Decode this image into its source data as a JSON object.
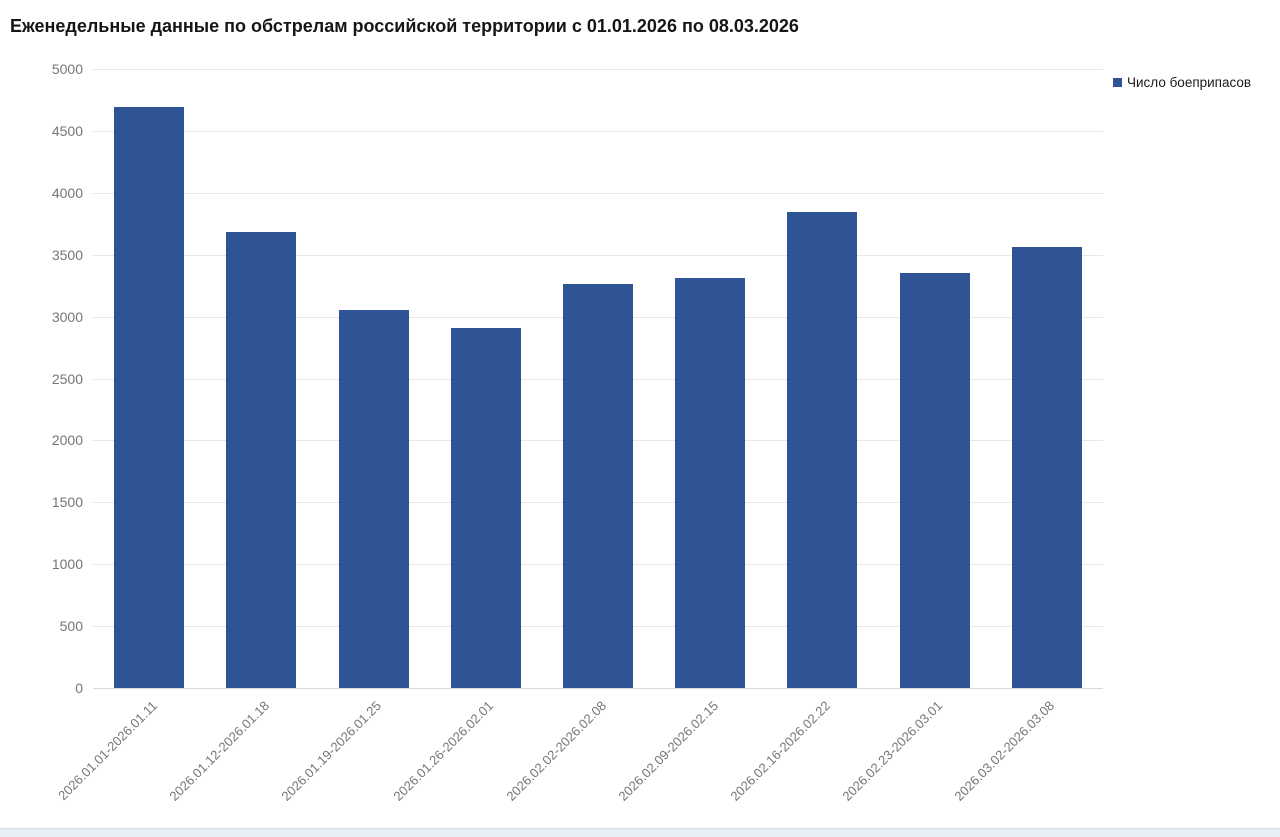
{
  "page": {
    "background": "#ffffff",
    "footer_strip_color": "#e8eef6"
  },
  "chart_data": {
    "type": "bar",
    "title": "Еженедельные данные по обстрелам российской территории с 01.01.2026 по 08.03.2026",
    "categories": [
      "2026.01.01-2026.01.11",
      "2026.01.12-2026.01.18",
      "2026.01.19-2026.01.25",
      "2026.01.26-2026.02.01",
      "2026.02.02-2026.02.08",
      "2026.02.09-2026.02.15",
      "2026.02.16-2026.02.22",
      "2026.02.23-2026.03.01",
      "2026.03.02-2026.03.08"
    ],
    "series": [
      {
        "name": "Число боеприпасов",
        "color": "#2F5496",
        "values": [
          4695,
          3685,
          3055,
          2910,
          3265,
          3310,
          3845,
          3350,
          3560
        ]
      }
    ],
    "xlabel": "",
    "ylabel": "",
    "ylim": [
      0,
      5000
    ],
    "ytick_step": 500,
    "grid": true,
    "legend_position": "top-right",
    "colors": {
      "axis_label": "#757575",
      "gridline": "#e7e7e7",
      "title_text": "#161616"
    }
  }
}
